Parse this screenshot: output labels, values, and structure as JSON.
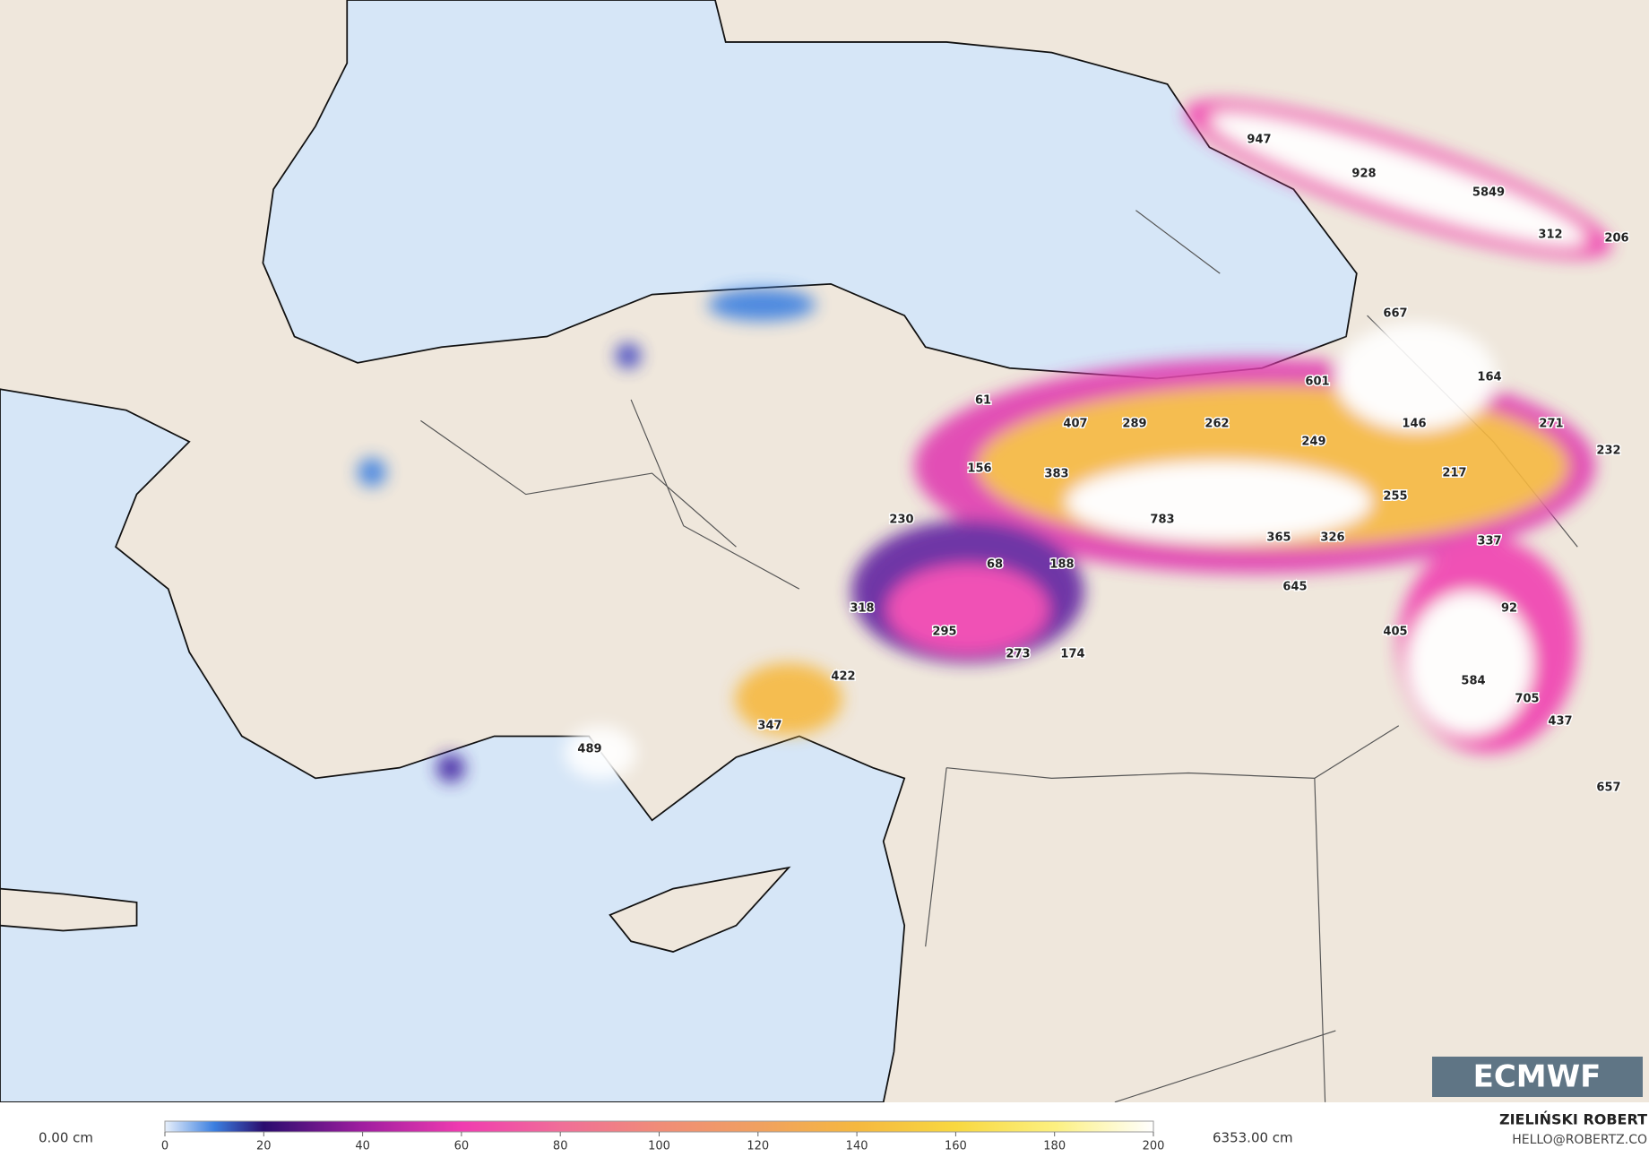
{
  "map": {
    "labels": [
      947,
      928,
      5849,
      312,
      206,
      667,
      601,
      164,
      61,
      407,
      289,
      262,
      146,
      271,
      249,
      232,
      156,
      383,
      217,
      255,
      230,
      783,
      365,
      326,
      337,
      68,
      188,
      645,
      318,
      92,
      295,
      405,
      273,
      174,
      422,
      584,
      705,
      347,
      437,
      489,
      657
    ]
  },
  "legend": {
    "min_label": "0.00 cm",
    "max_label": "6353.00 cm",
    "range": [
      0,
      200
    ],
    "ticks": [
      0,
      20,
      40,
      60,
      80,
      100,
      120,
      140,
      160,
      180,
      200
    ]
  },
  "logo": "ECMWF",
  "credit": {
    "name": "ZIELIŃSKI ROBERT",
    "email": "HELLO@ROBERTZ.CO"
  }
}
